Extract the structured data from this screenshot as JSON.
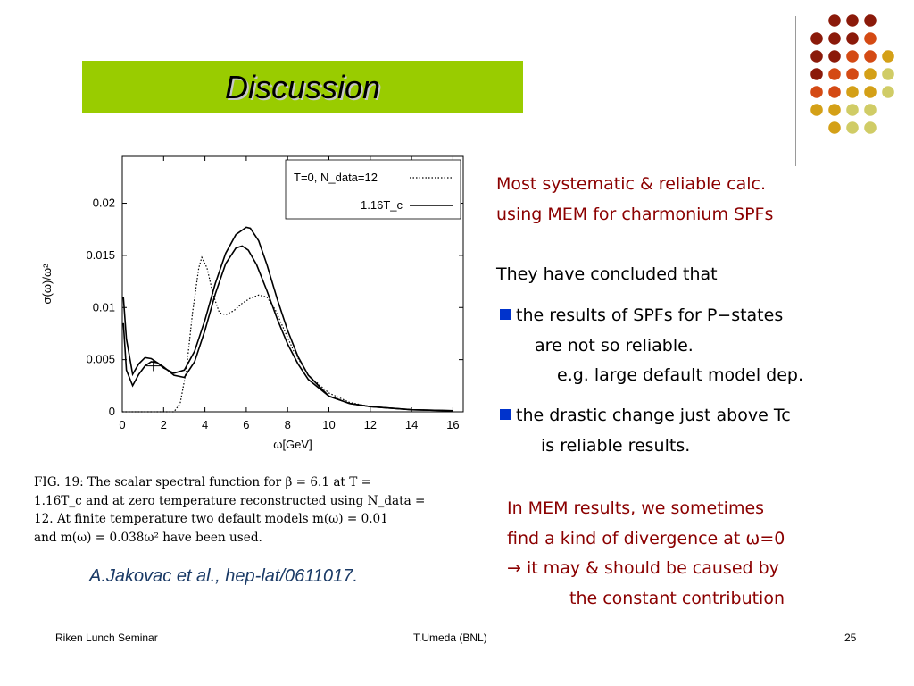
{
  "slide": {
    "title": "Discussion",
    "accent_colors": {
      "title_bar": "#99cc00",
      "emphasis_text": "#8b0000",
      "bullet": "#0033cc"
    }
  },
  "figure": {
    "caption_lines": [
      "FIG. 19:  The scalar spectral function for β = 6.1 at T =",
      "1.16T_c  and at zero temperature reconstructed using N_data =",
      "12.  At finite temperature two default models m(ω) = 0.01",
      "and m(ω) = 0.038ω² have been used."
    ],
    "reference": "A.Jakovac et al., hep-lat/0611017."
  },
  "chart_data": {
    "type": "line",
    "xlabel": "ω[GeV]",
    "ylabel": "σ(ω)/ω²",
    "xlim": [
      0,
      16.5
    ],
    "ylim": [
      0,
      0.0245
    ],
    "x_ticks": [
      0,
      2,
      4,
      6,
      8,
      10,
      12,
      14,
      16
    ],
    "y_ticks": [
      0,
      0.005,
      0.01,
      0.015,
      0.02
    ],
    "y_tick_labels": [
      "0",
      "0.005",
      "0.01",
      "0.015",
      "0.02"
    ],
    "legend_position": "top-right",
    "series": [
      {
        "name": "T=0, N_data=12",
        "style": "dotted",
        "x": [
          0,
          2.5,
          2.8,
          3.1,
          3.4,
          3.7,
          3.85,
          4.1,
          4.4,
          4.7,
          5.0,
          5.4,
          5.8,
          6.2,
          6.6,
          7.0,
          7.4,
          7.8,
          8.3,
          9.0,
          10.0,
          11.0,
          12.0,
          14.0,
          16.0
        ],
        "y": [
          0,
          0,
          0.0008,
          0.004,
          0.0095,
          0.0138,
          0.0148,
          0.0138,
          0.0112,
          0.0095,
          0.0093,
          0.0097,
          0.0104,
          0.0109,
          0.0112,
          0.011,
          0.0098,
          0.008,
          0.0058,
          0.0035,
          0.0018,
          0.0009,
          0.0005,
          0.0002,
          0.0001
        ]
      },
      {
        "name": "1.16T_c",
        "style": "solid",
        "curves": [
          {
            "x": [
              0.05,
              0.2,
              0.5,
              0.8,
              1.1,
              1.4,
              1.7,
              2.0,
              2.5,
              3.0,
              3.5,
              4.0,
              4.5,
              5.0,
              5.5,
              6.0,
              6.2,
              6.6,
              7.0,
              7.5,
              8.0,
              8.5,
              9.0,
              10.0,
              11.0,
              12.0,
              14.0,
              16.0
            ],
            "y": [
              0.011,
              0.007,
              0.0036,
              0.0046,
              0.0052,
              0.0051,
              0.0047,
              0.0042,
              0.0037,
              0.004,
              0.0058,
              0.0088,
              0.0123,
              0.0152,
              0.017,
              0.0177,
              0.0176,
              0.0164,
              0.0141,
              0.0108,
              0.0078,
              0.0053,
              0.0035,
              0.0015,
              0.0008,
              0.0005,
              0.0002,
              0.0001
            ]
          },
          {
            "x": [
              0.05,
              0.2,
              0.5,
              0.8,
              1.1,
              1.4,
              1.7,
              2.0,
              2.5,
              3.0,
              3.5,
              4.0,
              4.5,
              5.0,
              5.5,
              5.8,
              6.1,
              6.5,
              7.0,
              7.5,
              8.0,
              8.5,
              9.0,
              10.0,
              11.0,
              12.0,
              14.0,
              16.0
            ],
            "y": [
              0.0085,
              0.004,
              0.0025,
              0.0036,
              0.0044,
              0.0048,
              0.0047,
              0.0043,
              0.0035,
              0.0033,
              0.0048,
              0.0078,
              0.0113,
              0.0142,
              0.0157,
              0.0159,
              0.0155,
              0.0141,
              0.0116,
              0.0089,
              0.0065,
              0.0046,
              0.0031,
              0.0015,
              0.0008,
              0.0005,
              0.0002,
              0.0001
            ]
          }
        ],
        "error_bar": {
          "x": 1.5,
          "y": 0.0044,
          "xerr": 0.35,
          "yerr": 0.0005
        }
      }
    ]
  },
  "right_text": {
    "para1": [
      "Most systematic & reliable calc.",
      "using MEM for charmonium SPFs"
    ],
    "para2_intro": "They have concluded that",
    "bullets": [
      {
        "lines": [
          "the results of SPFs for P−states",
          "are not so reliable.",
          "e.g. large default model dep."
        ]
      },
      {
        "lines": [
          "the drastic change just above Tc",
          "is reliable results."
        ]
      }
    ],
    "para3": [
      "In MEM results, we sometimes",
      "find a kind of divergence at ω=0",
      "→  it may & should be caused by",
      "the constant contribution"
    ]
  },
  "footer": {
    "left": "Riken Lunch Seminar",
    "center": "T.Umeda (BNL)",
    "page": "25"
  }
}
